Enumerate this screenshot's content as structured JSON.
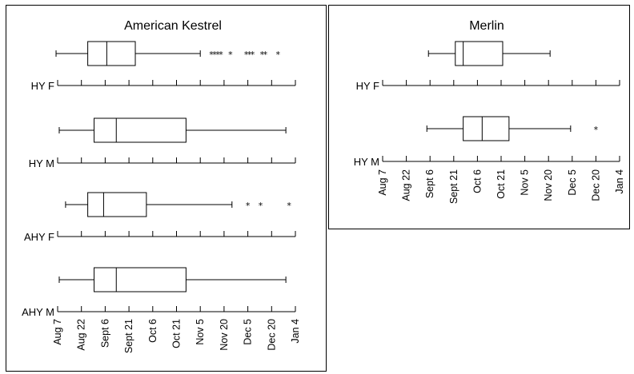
{
  "chart_data": [
    {
      "type": "boxplot",
      "title": "American Kestrel",
      "x_tick_labels": [
        "Aug 7",
        "Aug 22",
        "Sept 6",
        "Sept 21",
        "Oct 6",
        "Oct 21",
        "Nov 5",
        "Nov 20",
        "Dec 5",
        "Dec 20",
        "Jan 4"
      ],
      "x_ticks_days": [
        0,
        15,
        30,
        45,
        60,
        75,
        90,
        105,
        120,
        135,
        150
      ],
      "x_unit": "days after Aug 7",
      "xlim": [
        0,
        150
      ],
      "groups": [
        {
          "label": "HY F",
          "whisker_low": -1,
          "q1": 19,
          "median": 31,
          "q3": 49,
          "whisker_high": 90,
          "outliers": [
            97,
            99,
            101,
            103,
            109,
            119,
            121,
            123,
            129,
            131,
            139
          ]
        },
        {
          "label": "HY M",
          "whisker_low": 1,
          "q1": 23,
          "median": 37,
          "q3": 81,
          "whisker_high": 144,
          "outliers": []
        },
        {
          "label": "AHY F",
          "whisker_low": 5,
          "q1": 19,
          "median": 29,
          "q3": 56,
          "whisker_high": 110,
          "outliers": [
            120,
            128,
            146
          ]
        },
        {
          "label": "AHY M",
          "whisker_low": 1,
          "q1": 23,
          "median": 37,
          "q3": 81,
          "whisker_high": 144,
          "outliers": []
        }
      ]
    },
    {
      "type": "boxplot",
      "title": "Merlin",
      "x_tick_labels": [
        "Aug 7",
        "Aug 22",
        "Sept 6",
        "Sept 21",
        "Oct 6",
        "Oct 21",
        "Nov 5",
        "Nov 20",
        "Dec 5",
        "Dec 20",
        "Jan 4"
      ],
      "x_ticks_days": [
        0,
        15,
        30,
        45,
        60,
        75,
        90,
        105,
        120,
        135,
        150
      ],
      "x_unit": "days after Aug 7",
      "xlim": [
        0,
        150
      ],
      "groups": [
        {
          "label": "HY F",
          "whisker_low": 29,
          "q1": 46,
          "median": 51,
          "q3": 76,
          "whisker_high": 106,
          "outliers": []
        },
        {
          "label": "HY M",
          "whisker_low": 28,
          "q1": 51,
          "median": 63,
          "q3": 80,
          "whisker_high": 119,
          "outliers": [
            135
          ]
        }
      ]
    }
  ]
}
